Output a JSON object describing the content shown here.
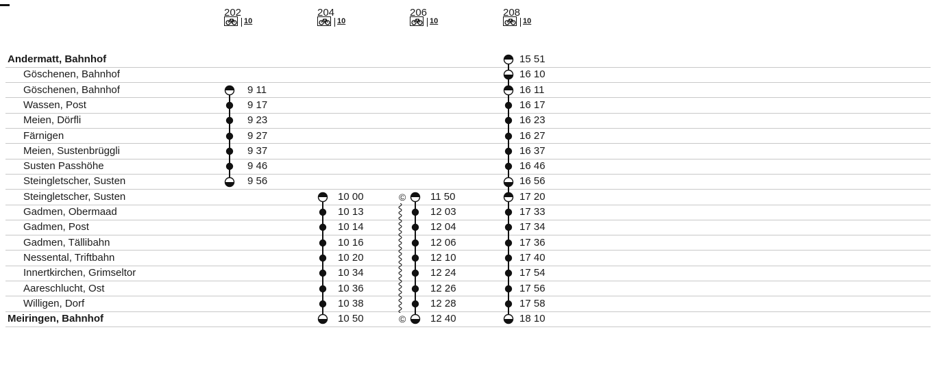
{
  "timetable": {
    "columns": [
      {
        "id": "202",
        "bike_note": "10",
        "times": [
          "",
          "",
          "9 11",
          "9 17",
          "9 23",
          "9 27",
          "9 37",
          "9 46",
          "9 56",
          "",
          "",
          "",
          "",
          "",
          "",
          "",
          "",
          ""
        ]
      },
      {
        "id": "204",
        "bike_note": "10",
        "times": [
          "",
          "",
          "",
          "",
          "",
          "",
          "",
          "",
          "",
          "10 00",
          "10 13",
          "10 14",
          "10 16",
          "10 20",
          "10 34",
          "10 36",
          "10 38",
          "10 50"
        ]
      },
      {
        "id": "206",
        "bike_note": "10",
        "times": [
          "",
          "",
          "",
          "",
          "",
          "",
          "",
          "",
          "",
          "11 50",
          "12 03",
          "12 04",
          "12 06",
          "12 10",
          "12 24",
          "12 26",
          "12 28",
          "12 40"
        ]
      },
      {
        "id": "208",
        "bike_note": "10",
        "times": [
          "15 51",
          "16 10",
          "16 11",
          "16 17",
          "16 23",
          "16 27",
          "16 37",
          "16 46",
          "16 56",
          "17 20",
          "17 33",
          "17 34",
          "17 36",
          "17 40",
          "17 54",
          "17 56",
          "17 58",
          "18 10"
        ]
      }
    ],
    "stops": [
      {
        "name": "Andermatt, Bahnhof",
        "main": true
      },
      {
        "name": "Göschenen, Bahnhof",
        "main": false
      },
      {
        "name": "Göschenen, Bahnhof",
        "main": false
      },
      {
        "name": "Wassen, Post",
        "main": false
      },
      {
        "name": "Meien, Dörfli",
        "main": false
      },
      {
        "name": "Färnigen",
        "main": false
      },
      {
        "name": "Meien, Sustenbrüggli",
        "main": false
      },
      {
        "name": "Susten Passhöhe",
        "main": false
      },
      {
        "name": "Steingletscher, Susten",
        "main": false
      },
      {
        "name": "Steingletscher, Susten",
        "main": false
      },
      {
        "name": "Gadmen, Obermaad",
        "main": false
      },
      {
        "name": "Gadmen, Post",
        "main": false
      },
      {
        "name": "Gadmen, Tällibahn",
        "main": false
      },
      {
        "name": "Nessental, Triftbahn",
        "main": false
      },
      {
        "name": "Innertkirchen, Grimseltor",
        "main": false
      },
      {
        "name": "Aareschlucht, Ost",
        "main": false
      },
      {
        "name": "Willigen, Dorf",
        "main": false
      },
      {
        "name": "Meiringen, Bahnhof",
        "main": true
      }
    ],
    "reservation_mark": "©",
    "icons": {
      "bike": "bicycle-icon",
      "departure": "half-circle-top-icon",
      "arrival": "half-circle-bottom-icon",
      "stop": "filled-circle-icon"
    }
  }
}
